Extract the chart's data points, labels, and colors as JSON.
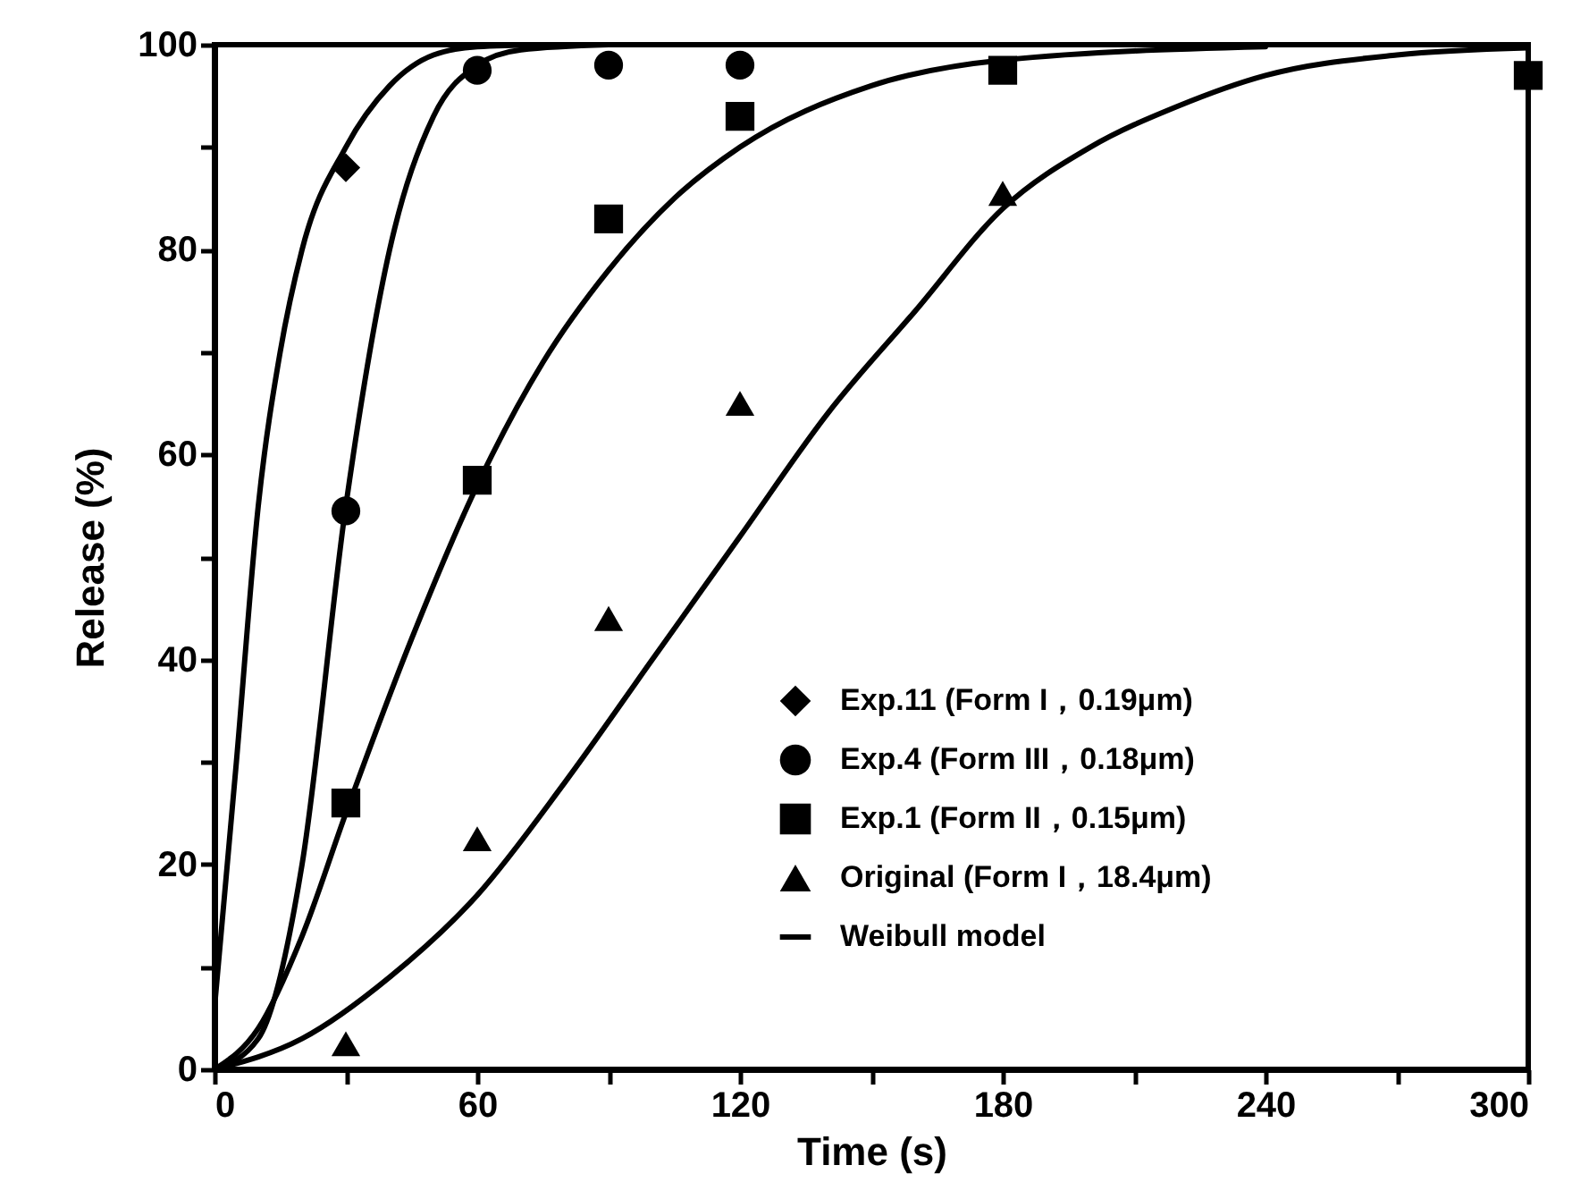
{
  "chart_data": {
    "type": "scatter",
    "xlabel": "Time (s)",
    "ylabel": "Release (%)",
    "xlim": [
      0,
      300
    ],
    "ylim": [
      0,
      100
    ],
    "xticks": [
      0,
      {
        "value": 30,
        "label": null
      },
      60,
      {
        "value": 90,
        "label": null
      },
      120,
      {
        "value": 150,
        "label": null
      },
      180,
      {
        "value": 210,
        "label": null
      },
      240,
      {
        "value": 270,
        "label": null
      },
      300
    ],
    "yticks": [
      0,
      {
        "value": 10,
        "label": null
      },
      20,
      {
        "value": 30,
        "label": null
      },
      40,
      {
        "value": 50,
        "label": null
      },
      60,
      {
        "value": 70,
        "label": null
      },
      80,
      {
        "value": 90,
        "label": null
      },
      100
    ],
    "grid": false,
    "legend": "bottom right",
    "series": [
      {
        "name": "Exp.11 (Form I，0.19μm)",
        "marker": "diamond",
        "color": "#000000",
        "x": [
          30
        ],
        "values": [
          88
        ]
      },
      {
        "name": "Exp.4    (Form III，0.18μm)",
        "marker": "circle",
        "color": "#000000",
        "x": [
          30,
          60,
          90,
          120
        ],
        "values": [
          54.5,
          97.5,
          98,
          98
        ]
      },
      {
        "name": "Exp.1    (Form II，0.15μm)",
        "marker": "square",
        "color": "#000000",
        "x": [
          30,
          60,
          90,
          120,
          180,
          300
        ],
        "values": [
          26,
          57.5,
          83,
          93,
          97.5,
          97
        ]
      },
      {
        "name": "Original (Form I，18.4μm)",
        "marker": "triangle",
        "color": "#000000",
        "x": [
          30,
          60,
          90,
          120,
          180
        ],
        "values": [
          2.5,
          22.5,
          44,
          65,
          85.5
        ]
      },
      {
        "name": "Weibull model",
        "type": "line",
        "color": "#000000",
        "x": [
          0,
          5,
          10,
          15,
          20,
          30,
          40,
          50,
          60,
          75
        ],
        "values": [
          6,
          30,
          55,
          70,
          80,
          90,
          96,
          99,
          99.8,
          100
        ]
      },
      {
        "type": "line",
        "color": "#000000",
        "x": [
          0,
          10,
          20,
          30,
          40,
          50,
          60,
          70,
          90
        ],
        "values": [
          0,
          3,
          20,
          55,
          80,
          93,
          98,
          99.5,
          100
        ]
      },
      {
        "type": "line",
        "color": "#000000",
        "x": [
          0,
          10,
          20,
          30,
          45,
          60,
          75,
          90,
          105,
          120,
          150,
          180,
          240
        ],
        "values": [
          0,
          4,
          13,
          25,
          42,
          57,
          69,
          78,
          85,
          90,
          96,
          98.5,
          99.8
        ]
      },
      {
        "type": "line",
        "color": "#000000",
        "x": [
          0,
          20,
          40,
          60,
          80,
          100,
          120,
          140,
          160,
          180,
          200,
          220,
          240,
          270,
          300
        ],
        "values": [
          0,
          3,
          9,
          17,
          28,
          40,
          52,
          64,
          74,
          84,
          90,
          94,
          97,
          99,
          99.7
        ]
      }
    ]
  }
}
